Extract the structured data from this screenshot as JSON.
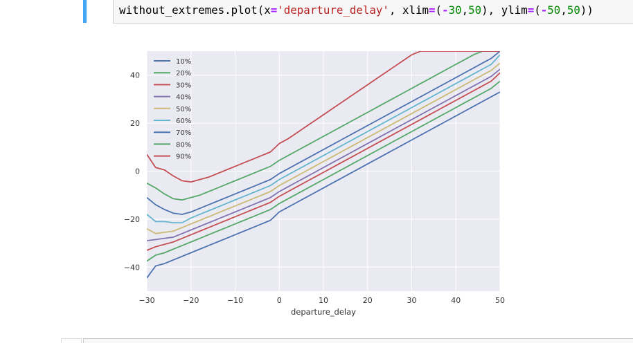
{
  "code_cell": {
    "tokens": [
      {
        "text": "without_extremes.plot(x",
        "cls": ""
      },
      {
        "text": "=",
        "cls": "tok-op"
      },
      {
        "text": "'departure_delay'",
        "cls": "tok-str"
      },
      {
        "text": ", xlim",
        "cls": ""
      },
      {
        "text": "=",
        "cls": "tok-op"
      },
      {
        "text": "(",
        "cls": ""
      },
      {
        "text": "-",
        "cls": "tok-op"
      },
      {
        "text": "30",
        "cls": "tok-num"
      },
      {
        "text": ",",
        "cls": ""
      },
      {
        "text": "50",
        "cls": "tok-num"
      },
      {
        "text": "), ylim",
        "cls": ""
      },
      {
        "text": "=",
        "cls": "tok-op"
      },
      {
        "text": "(",
        "cls": ""
      },
      {
        "text": "-",
        "cls": "tok-op"
      },
      {
        "text": "50",
        "cls": "tok-num"
      },
      {
        "text": ",",
        "cls": ""
      },
      {
        "text": "50",
        "cls": "tok-num"
      },
      {
        "text": "))",
        "cls": ""
      }
    ]
  },
  "chart_data": {
    "type": "line",
    "title": "",
    "xlabel": "departure_delay",
    "ylabel": "",
    "xlim": [
      -30,
      50
    ],
    "ylim": [
      -50,
      50
    ],
    "xticks": [
      -30,
      -20,
      -10,
      0,
      10,
      20,
      30,
      40,
      50
    ],
    "yticks": [
      -40,
      -20,
      0,
      20,
      40
    ],
    "grid": true,
    "legend_position": "top-left",
    "background": "#eaeaf2",
    "x": [
      -30,
      -28,
      -26,
      -24,
      -22,
      -20,
      -18,
      -16,
      -14,
      -12,
      -10,
      -8,
      -6,
      -4,
      -2,
      0,
      2,
      4,
      6,
      8,
      10,
      12,
      14,
      16,
      18,
      20,
      22,
      24,
      26,
      28,
      30,
      32,
      34,
      36,
      38,
      40,
      42,
      44,
      46,
      48,
      50
    ],
    "series": [
      {
        "name": "10%",
        "color": "#4c72b0",
        "values": [
          -44.5,
          -39.5,
          -38.5,
          -37.0,
          -35.5,
          -34.0,
          -32.5,
          -31.0,
          -29.5,
          -28.0,
          -26.5,
          -25.0,
          -23.5,
          -22.0,
          -20.5,
          -17.0,
          -15.0,
          -13.0,
          -11.0,
          -9.0,
          -7.0,
          -5.0,
          -3.0,
          -1.0,
          1.0,
          3.0,
          5.0,
          7.0,
          9.0,
          11.0,
          13.0,
          15.0,
          17.0,
          19.0,
          21.0,
          23.0,
          25.0,
          27.0,
          29.0,
          31.0,
          33.0
        ]
      },
      {
        "name": "20%",
        "color": "#55a868",
        "values": [
          -37.5,
          -35.0,
          -34.0,
          -32.5,
          -31.0,
          -29.5,
          -28.0,
          -26.5,
          -25.0,
          -23.5,
          -22.0,
          -20.5,
          -19.0,
          -17.5,
          -16.0,
          -13.5,
          -11.5,
          -9.5,
          -7.5,
          -5.5,
          -3.5,
          -1.5,
          0.5,
          2.5,
          4.5,
          6.5,
          8.5,
          10.5,
          12.5,
          14.5,
          16.5,
          18.5,
          20.5,
          22.5,
          24.5,
          26.5,
          28.5,
          30.5,
          32.5,
          34.5,
          37.5
        ]
      },
      {
        "name": "30%",
        "color": "#c44e52",
        "values": [
          -33.0,
          -31.5,
          -30.5,
          -29.5,
          -28.0,
          -26.5,
          -25.0,
          -23.5,
          -22.0,
          -20.5,
          -19.0,
          -17.5,
          -16.0,
          -14.5,
          -13.0,
          -10.5,
          -8.5,
          -6.5,
          -4.5,
          -2.5,
          -0.5,
          1.5,
          3.5,
          5.5,
          7.5,
          9.5,
          11.5,
          13.5,
          15.5,
          17.5,
          19.5,
          21.5,
          23.5,
          25.5,
          27.5,
          29.5,
          31.5,
          33.5,
          35.5,
          37.5,
          41.0
        ]
      },
      {
        "name": "40%",
        "color": "#8172b2",
        "values": [
          -29.0,
          -28.5,
          -28.0,
          -27.5,
          -26.0,
          -24.5,
          -23.0,
          -21.5,
          -20.0,
          -18.5,
          -17.0,
          -15.5,
          -14.0,
          -12.5,
          -11.0,
          -8.5,
          -6.5,
          -4.5,
          -2.5,
          -0.5,
          1.5,
          3.5,
          5.5,
          7.5,
          9.5,
          11.5,
          13.5,
          15.5,
          17.5,
          19.5,
          21.5,
          23.5,
          25.5,
          27.5,
          29.5,
          31.5,
          33.5,
          35.5,
          37.5,
          39.5,
          42.5
        ]
      },
      {
        "name": "50%",
        "color": "#ccb974",
        "values": [
          -24.0,
          -26.0,
          -25.5,
          -25.0,
          -23.5,
          -22.0,
          -20.5,
          -19.0,
          -17.5,
          -16.0,
          -14.5,
          -13.0,
          -11.5,
          -10.0,
          -8.5,
          -6.0,
          -4.0,
          -2.0,
          0.0,
          2.0,
          4.0,
          6.0,
          8.0,
          10.0,
          12.0,
          14.0,
          16.0,
          18.0,
          20.0,
          22.0,
          24.0,
          26.0,
          28.0,
          30.0,
          32.0,
          34.0,
          36.0,
          38.0,
          40.0,
          42.0,
          45.0
        ]
      },
      {
        "name": "60%",
        "color": "#64b5cd",
        "values": [
          -18.0,
          -21.0,
          -21.0,
          -21.5,
          -21.5,
          -19.5,
          -18.0,
          -16.5,
          -15.0,
          -13.5,
          -12.0,
          -10.5,
          -9.0,
          -7.5,
          -6.0,
          -3.5,
          -1.5,
          0.5,
          2.5,
          4.5,
          6.5,
          8.5,
          10.5,
          12.5,
          14.5,
          16.5,
          18.5,
          20.5,
          22.5,
          24.5,
          26.5,
          28.5,
          30.5,
          32.5,
          34.5,
          36.5,
          38.5,
          40.5,
          42.5,
          44.5,
          48.5
        ]
      },
      {
        "name": "70%",
        "color": "#4c72b0",
        "values": [
          -11.0,
          -14.0,
          -16.0,
          -17.5,
          -18.0,
          -17.0,
          -15.5,
          -14.0,
          -12.5,
          -11.0,
          -9.5,
          -8.0,
          -6.5,
          -5.0,
          -3.5,
          -1.0,
          1.0,
          3.0,
          5.0,
          7.0,
          9.0,
          11.0,
          13.0,
          15.0,
          17.0,
          19.0,
          21.0,
          23.0,
          25.0,
          27.0,
          29.0,
          31.0,
          33.0,
          35.0,
          37.0,
          39.0,
          41.0,
          43.0,
          45.0,
          47.0,
          50.0
        ]
      },
      {
        "name": "80%",
        "color": "#55a868",
        "values": [
          -5.0,
          -7.0,
          -9.5,
          -11.5,
          -12.0,
          -11.0,
          -10.0,
          -8.5,
          -7.0,
          -5.5,
          -4.0,
          -2.5,
          -1.0,
          0.5,
          2.0,
          4.5,
          6.5,
          8.5,
          10.5,
          12.5,
          14.5,
          16.5,
          18.5,
          20.5,
          22.5,
          24.5,
          26.5,
          28.5,
          30.5,
          32.5,
          34.5,
          36.5,
          38.5,
          40.5,
          42.5,
          44.5,
          46.5,
          48.5,
          50.0,
          50.0,
          50.0
        ]
      },
      {
        "name": "90%",
        "color": "#c44e52",
        "values": [
          7.0,
          1.5,
          0.5,
          -2.0,
          -4.0,
          -4.5,
          -3.5,
          -2.5,
          -1.0,
          0.5,
          2.0,
          3.5,
          5.0,
          6.5,
          8.0,
          11.5,
          13.5,
          16.0,
          18.5,
          21.0,
          23.5,
          26.0,
          28.5,
          31.0,
          33.5,
          36.0,
          38.5,
          41.0,
          43.5,
          46.0,
          48.5,
          50.0,
          50.0,
          50.0,
          50.0,
          50.0,
          50.0,
          50.0,
          50.0,
          50.0,
          50.0
        ]
      }
    ]
  }
}
